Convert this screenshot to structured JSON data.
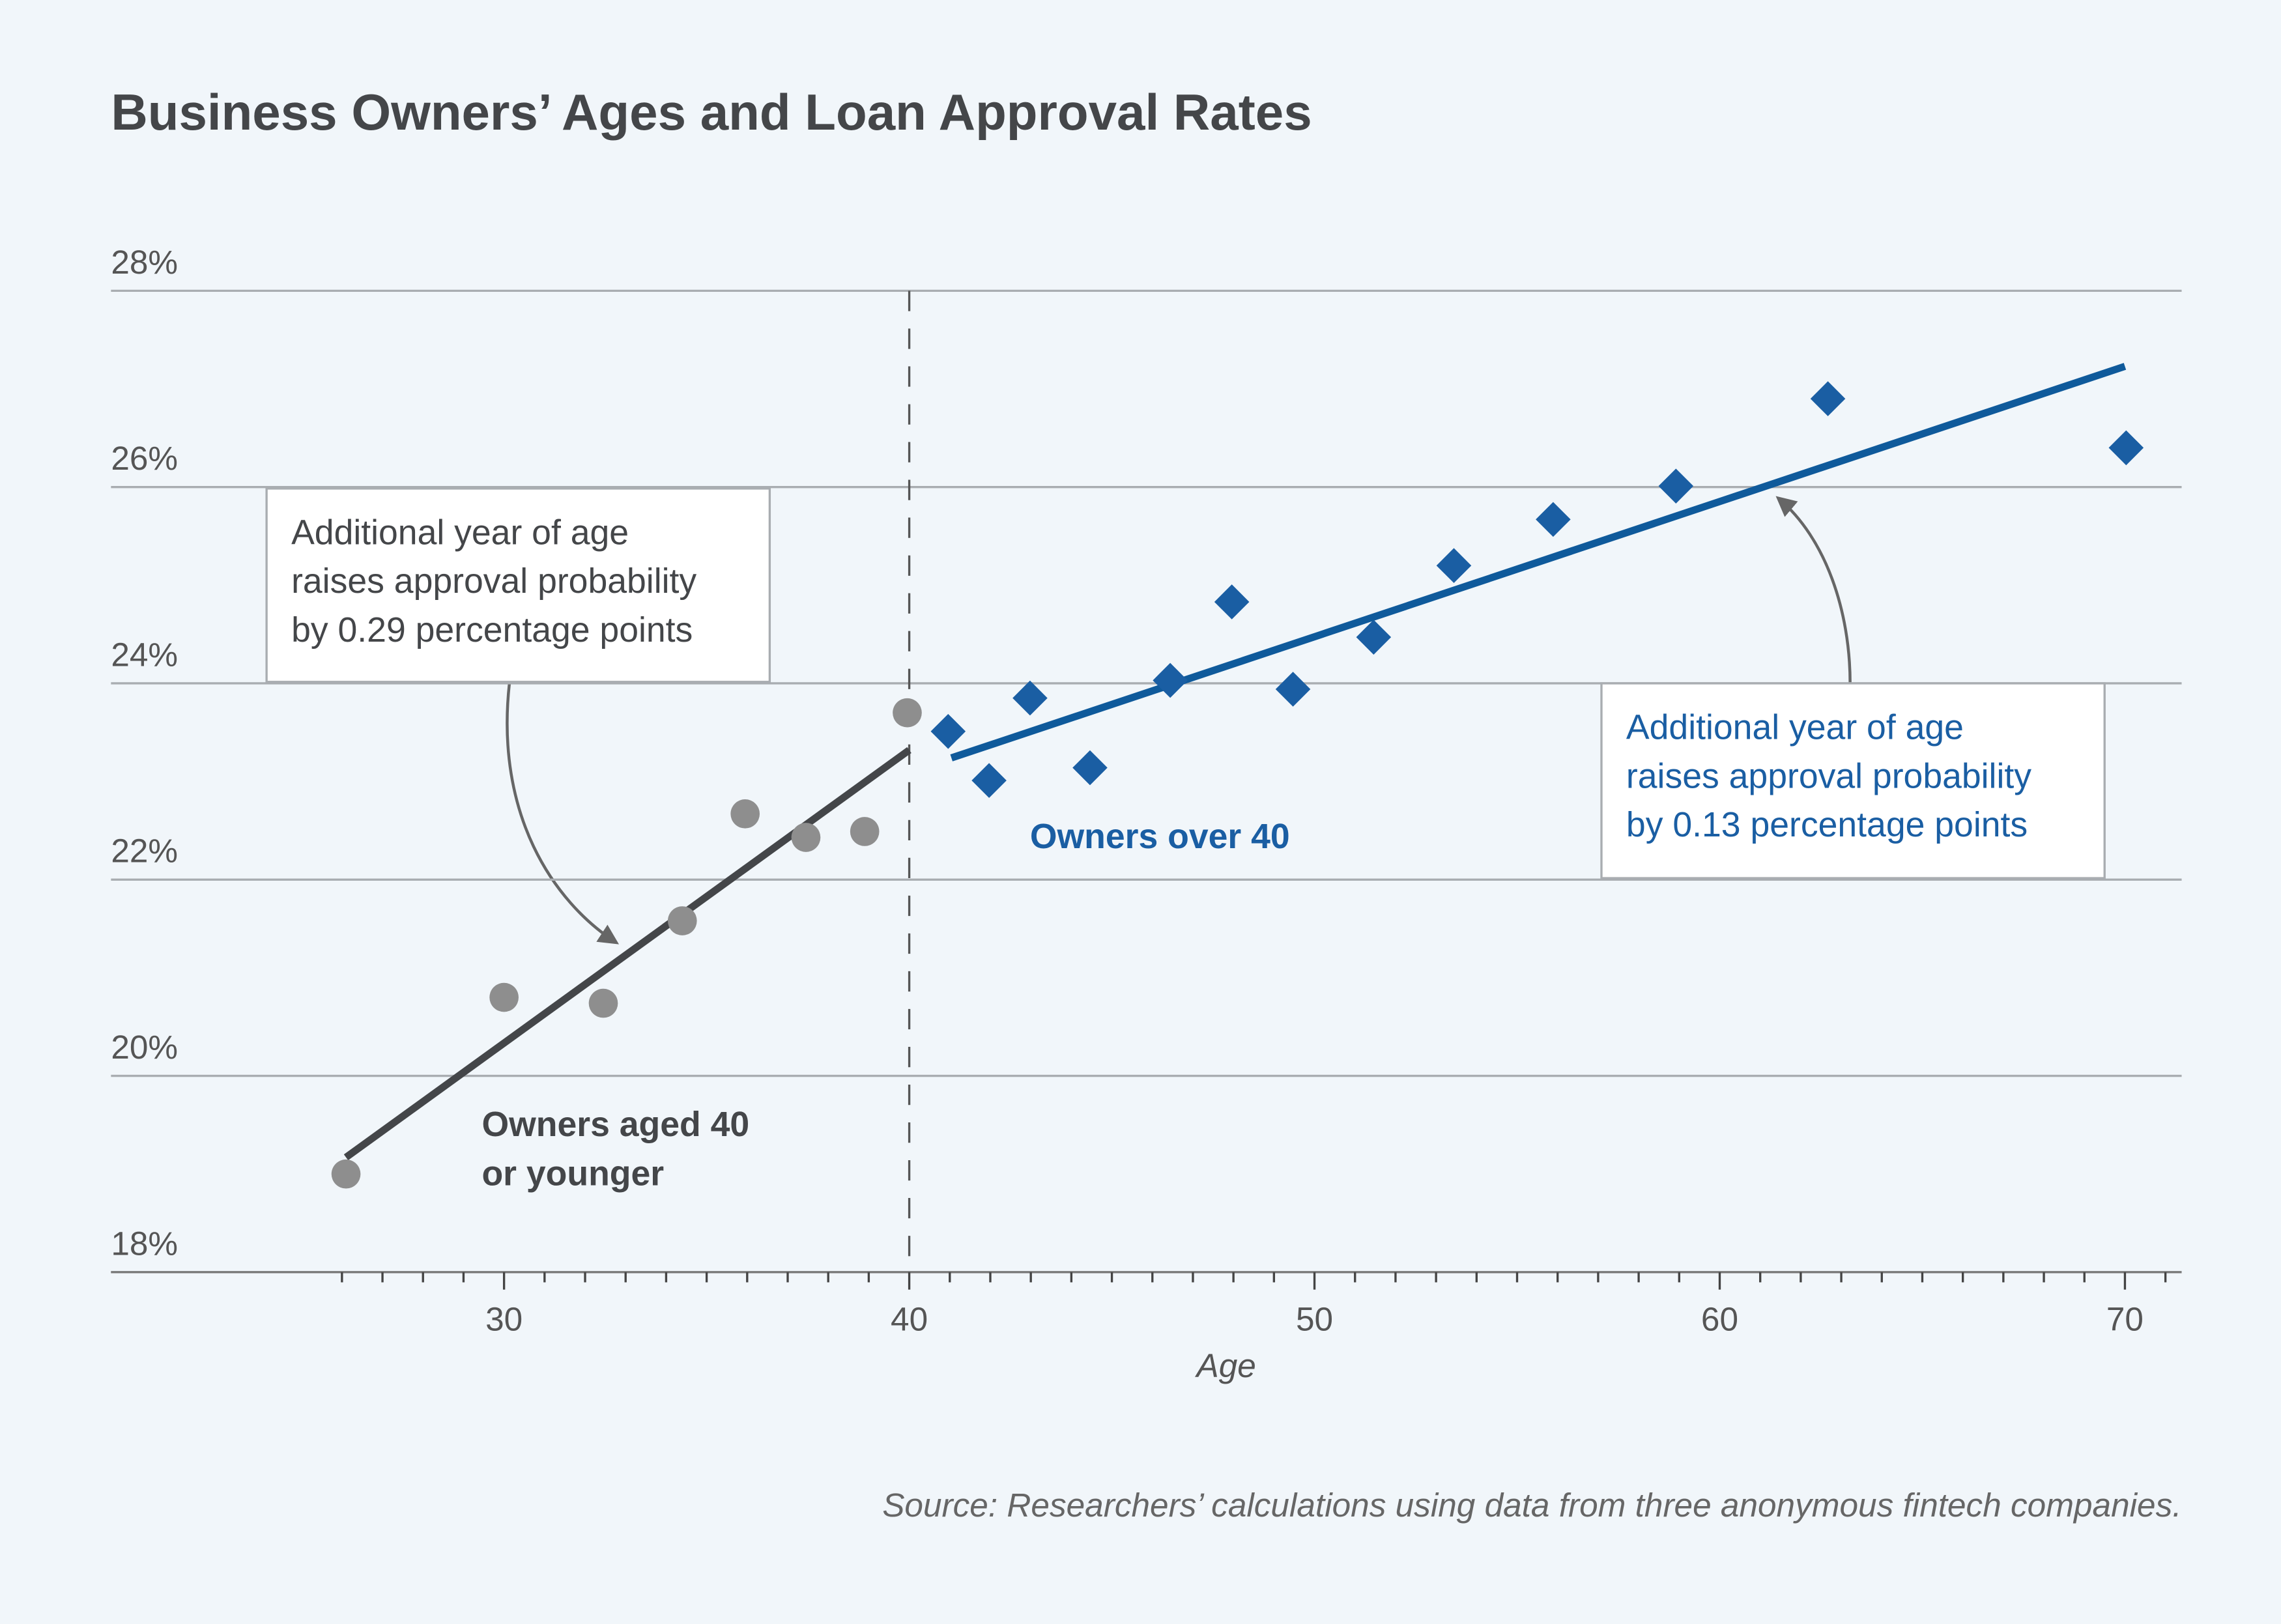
{
  "chart_data": {
    "type": "scatter",
    "title": "Business Owners’ Ages and Loan Approval Rates",
    "xlabel": "Age",
    "source": "Source: Researchers’ calculations using data from three anonymous fintech companies.",
    "xlim": [
      20.3,
      71.4
    ],
    "ylim": [
      18,
      28
    ],
    "xticks": [
      30,
      40,
      50,
      60,
      70
    ],
    "xminorticks": [
      26,
      27,
      28,
      29,
      31,
      32,
      33,
      34,
      35,
      36,
      37,
      38,
      39,
      41,
      42,
      43,
      44,
      45,
      46,
      47,
      48,
      49,
      51,
      52,
      53,
      54,
      55,
      56,
      57,
      58,
      59,
      61,
      62,
      63,
      64,
      65,
      66,
      67,
      68,
      69,
      71
    ],
    "yticks": [
      {
        "value": 18,
        "label": "18%"
      },
      {
        "value": 20,
        "label": "20%"
      },
      {
        "value": 22,
        "label": "22%"
      },
      {
        "value": 24,
        "label": "24%"
      },
      {
        "value": 26,
        "label": "26%"
      },
      {
        "value": 28,
        "label": "28%"
      }
    ],
    "grid": true,
    "vline": 40,
    "series": [
      {
        "label": [
          "Owners aged 40",
          "or younger"
        ],
        "marker": "circle",
        "color": "#8e8e8e",
        "label_color": "#444649",
        "x": [
          26.1,
          30.0,
          32.45,
          34.4,
          35.95,
          37.45,
          38.9,
          39.95
        ],
        "values": [
          19.0,
          20.8,
          20.74,
          21.58,
          22.67,
          22.43,
          22.49,
          23.7
        ],
        "fit": {
          "color": "#444649",
          "x": [
            26.1,
            40.0
          ],
          "values": [
            19.17,
            23.32
          ]
        },
        "annotation": [
          "Additional year of age",
          "raises approval probability",
          "by 0.29 percentage points"
        ],
        "annotation_color": "#444649"
      },
      {
        "label": [
          "Owners over 40"
        ],
        "marker": "diamond",
        "color": "#1a5ea3",
        "label_color": "#1a5ea3",
        "x": [
          40.96,
          41.97,
          42.98,
          44.46,
          46.44,
          47.96,
          49.47,
          51.46,
          53.44,
          55.89,
          58.92,
          62.67,
          70.03
        ],
        "values": [
          23.51,
          23.01,
          23.85,
          23.14,
          24.03,
          24.83,
          23.94,
          24.47,
          25.2,
          25.67,
          26.01,
          26.9,
          26.4
        ],
        "fit": {
          "color": "#0f5a9b",
          "x": [
            41.04,
            70.0
          ],
          "values": [
            23.24,
            27.23
          ]
        },
        "annotation": [
          "Additional year of age",
          "raises approval probability",
          "by 0.13 percentage points"
        ],
        "annotation_color": "#1a5ea3"
      }
    ]
  }
}
